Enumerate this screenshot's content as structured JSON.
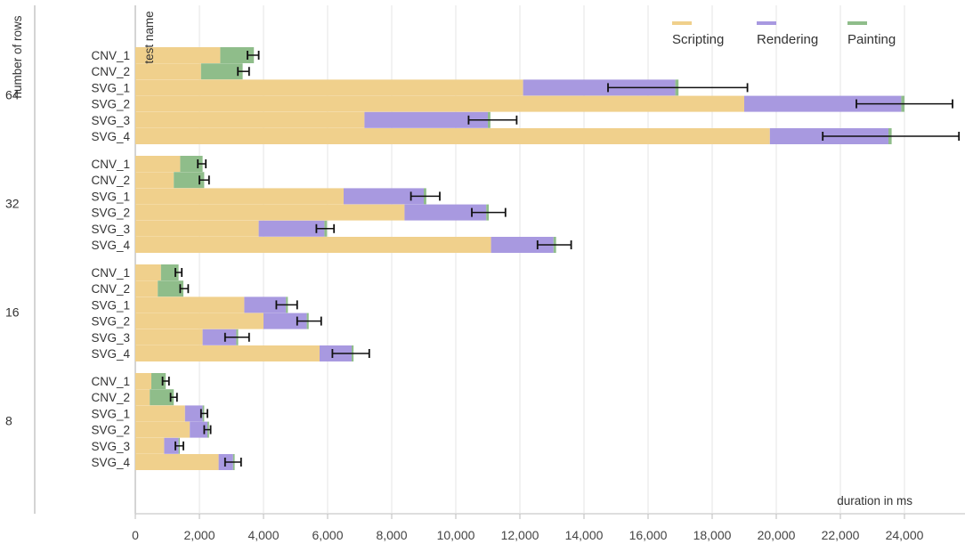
{
  "chart_data": {
    "type": "bar",
    "orientation": "horizontal",
    "stacked": true,
    "xlabel": "duration in ms",
    "ylabel_outer": "number of rows",
    "ylabel_inner": "test name",
    "xlim": [
      0,
      25500
    ],
    "x_ticks": [
      0,
      2000,
      4000,
      6000,
      8000,
      10000,
      12000,
      14000,
      16000,
      18000,
      20000,
      22000,
      24000
    ],
    "x_tick_labels": [
      "0",
      "2,000",
      "4,000",
      "6,000",
      "8,000",
      "10,000",
      "12,000",
      "14,000",
      "16,000",
      "18,000",
      "20,000",
      "22,000",
      "24,000"
    ],
    "grid": true,
    "legend_position": "top-right",
    "series": [
      {
        "name": "Scripting",
        "color": "#f0d08c"
      },
      {
        "name": "Rendering",
        "color": "#a899e0"
      },
      {
        "name": "Painting",
        "color": "#8fbd8a"
      }
    ],
    "error_bar_color": "#111111",
    "groups": [
      {
        "label": "64",
        "bars": [
          {
            "name": "CNV_1",
            "scripting": 2650,
            "rendering": 0,
            "painting": 1050,
            "error_low": 3500,
            "error_high": 3850
          },
          {
            "name": "CNV_2",
            "scripting": 2050,
            "rendering": 0,
            "painting": 1300,
            "error_low": 3200,
            "error_high": 3550
          },
          {
            "name": "SVG_1",
            "scripting": 12100,
            "rendering": 4750,
            "painting": 100,
            "error_low": 14750,
            "error_high": 19100
          },
          {
            "name": "SVG_2",
            "scripting": 19000,
            "rendering": 4900,
            "painting": 100,
            "error_low": 22500,
            "error_high": 25500
          },
          {
            "name": "SVG_3",
            "scripting": 7150,
            "rendering": 3850,
            "painting": 80,
            "error_low": 10400,
            "error_high": 11900
          },
          {
            "name": "SVG_4",
            "scripting": 19800,
            "rendering": 3700,
            "painting": 100,
            "error_low": 21450,
            "error_high": 25700
          }
        ]
      },
      {
        "label": "32",
        "bars": [
          {
            "name": "CNV_1",
            "scripting": 1400,
            "rendering": 0,
            "painting": 700,
            "error_low": 1950,
            "error_high": 2200
          },
          {
            "name": "CNV_2",
            "scripting": 1200,
            "rendering": 0,
            "painting": 950,
            "error_low": 2000,
            "error_high": 2300
          },
          {
            "name": "SVG_1",
            "scripting": 6500,
            "rendering": 2500,
            "painting": 80,
            "error_low": 8600,
            "error_high": 9500
          },
          {
            "name": "SVG_2",
            "scripting": 8400,
            "rendering": 2550,
            "painting": 80,
            "error_low": 10500,
            "error_high": 11550
          },
          {
            "name": "SVG_3",
            "scripting": 3850,
            "rendering": 2050,
            "painting": 80,
            "error_low": 5650,
            "error_high": 6200
          },
          {
            "name": "SVG_4",
            "scripting": 11100,
            "rendering": 1950,
            "painting": 80,
            "error_low": 12550,
            "error_high": 13600
          }
        ]
      },
      {
        "label": "16",
        "bars": [
          {
            "name": "CNV_1",
            "scripting": 800,
            "rendering": 0,
            "painting": 550,
            "error_low": 1250,
            "error_high": 1450
          },
          {
            "name": "CNV_2",
            "scripting": 700,
            "rendering": 0,
            "painting": 800,
            "error_low": 1400,
            "error_high": 1650
          },
          {
            "name": "SVG_1",
            "scripting": 3400,
            "rendering": 1300,
            "painting": 60,
            "error_low": 4400,
            "error_high": 5050
          },
          {
            "name": "SVG_2",
            "scripting": 4000,
            "rendering": 1350,
            "painting": 60,
            "error_low": 5050,
            "error_high": 5800
          },
          {
            "name": "SVG_3",
            "scripting": 2100,
            "rendering": 1050,
            "painting": 60,
            "error_low": 2800,
            "error_high": 3550
          },
          {
            "name": "SVG_4",
            "scripting": 5750,
            "rendering": 1000,
            "painting": 60,
            "error_low": 6150,
            "error_high": 7300
          }
        ]
      },
      {
        "label": "8",
        "bars": [
          {
            "name": "CNV_1",
            "scripting": 500,
            "rendering": 0,
            "painting": 450,
            "error_low": 850,
            "error_high": 1050
          },
          {
            "name": "CNV_2",
            "scripting": 450,
            "rendering": 0,
            "painting": 750,
            "error_low": 1100,
            "error_high": 1300
          },
          {
            "name": "SVG_1",
            "scripting": 1550,
            "rendering": 550,
            "painting": 50,
            "error_low": 2050,
            "error_high": 2250
          },
          {
            "name": "SVG_2",
            "scripting": 1700,
            "rendering": 550,
            "painting": 50,
            "error_low": 2150,
            "error_high": 2350
          },
          {
            "name": "SVG_3",
            "scripting": 900,
            "rendering": 450,
            "painting": 40,
            "error_low": 1250,
            "error_high": 1500
          },
          {
            "name": "SVG_4",
            "scripting": 2600,
            "rendering": 450,
            "painting": 50,
            "error_low": 2800,
            "error_high": 3300
          }
        ]
      }
    ]
  }
}
